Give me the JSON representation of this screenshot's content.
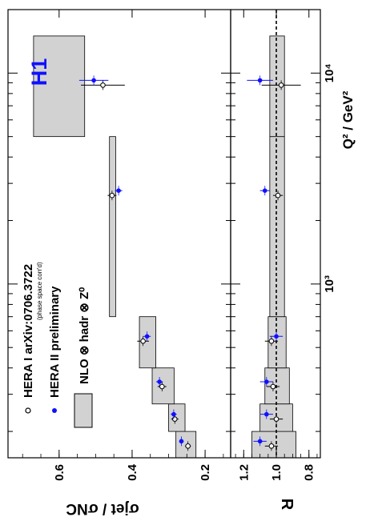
{
  "figure": {
    "logo": "H1",
    "x_axis_title": "Q² / GeV²",
    "x_tick_labels": [
      "10³",
      "10⁴"
    ],
    "top_y_title": "σjet / σNC",
    "bottom_y_title": "R",
    "legend": [
      {
        "label": "HERA I  arXiv:0706.3722",
        "sublabel": "(phase space corr'd)",
        "marker": "open-circle"
      },
      {
        "label": "HERA II preliminary",
        "marker": "filled-circle"
      },
      {
        "label": "NLO ⊗ hadr ⊗ Z⁰",
        "marker": "grey-box"
      }
    ],
    "colors": {
      "hera2": "#1010ff",
      "band": "#d2d2d2",
      "logo": "#1010ff"
    }
  },
  "chart_data": [
    {
      "type": "scatter",
      "panel": "ratio sigma_jet / sigma_NC",
      "ylabel": "σjet / σNC",
      "xlabel": "Q² / GeV²",
      "xscale": "log",
      "xlim": [
        150,
        20000
      ],
      "ylim": [
        0.13,
        0.74
      ],
      "yticks": [
        0.2,
        0.4,
        0.6
      ],
      "bins": [
        [
          150,
          200
        ],
        [
          200,
          270
        ],
        [
          270,
          400
        ],
        [
          400,
          700
        ],
        [
          700,
          5000
        ],
        [
          5000,
          15000
        ]
      ],
      "series": [
        {
          "name": "HERA I  arXiv:0706.3722",
          "x": [
            175,
            235,
            335,
            550,
            2700,
            9000
          ],
          "y": [
            0.247,
            0.283,
            0.318,
            0.37,
            0.455,
            0.48
          ],
          "err": [
            0.008,
            0.01,
            0.012,
            0.016,
            0.012,
            0.06
          ]
        },
        {
          "name": "HERA II preliminary",
          "x": [
            175,
            235,
            335,
            550,
            2700,
            9000
          ],
          "y": [
            0.265,
            0.286,
            0.325,
            0.359,
            0.437,
            0.505
          ],
          "err": [
            0.006,
            0.008,
            0.009,
            0.01,
            0.01,
            0.04
          ]
        },
        {
          "name": "NLO ⊗ hadr ⊗ Z⁰",
          "type": "band",
          "low": [
            0.225,
            0.255,
            0.285,
            0.335,
            0.445,
            0.53
          ],
          "high": [
            0.28,
            0.3,
            0.345,
            0.38,
            0.462,
            0.67
          ]
        }
      ]
    },
    {
      "type": "scatter",
      "panel": "R",
      "ylabel": "R",
      "xlabel": "Q² / GeV²",
      "xscale": "log",
      "xlim": [
        150,
        20000
      ],
      "ylim": [
        0.73,
        1.28
      ],
      "yticks": [
        0.8,
        1.0,
        1.2
      ],
      "reference_line": 1.0,
      "series": [
        {
          "name": "HERA I  arXiv:0706.3722",
          "x": [
            175,
            235,
            335,
            550,
            2700,
            9000
          ],
          "y": [
            1.03,
            1.0,
            1.02,
            1.03,
            0.99,
            0.97
          ],
          "err": [
            0.04,
            0.04,
            0.04,
            0.04,
            0.03,
            0.12
          ]
        },
        {
          "name": "HERA II preliminary",
          "x": [
            175,
            235,
            335,
            550,
            2700,
            9000
          ],
          "y": [
            1.1,
            1.06,
            1.06,
            1.0,
            1.07,
            1.1
          ],
          "err": [
            0.04,
            0.04,
            0.04,
            0.04,
            0.03,
            0.08
          ]
        },
        {
          "name": "NLO ⊗ hadr ⊗ Z⁰",
          "type": "band",
          "low": [
            0.88,
            0.9,
            0.92,
            0.94,
            0.95,
            0.95
          ],
          "high": [
            1.15,
            1.1,
            1.07,
            1.05,
            1.04,
            1.04
          ]
        }
      ]
    }
  ]
}
